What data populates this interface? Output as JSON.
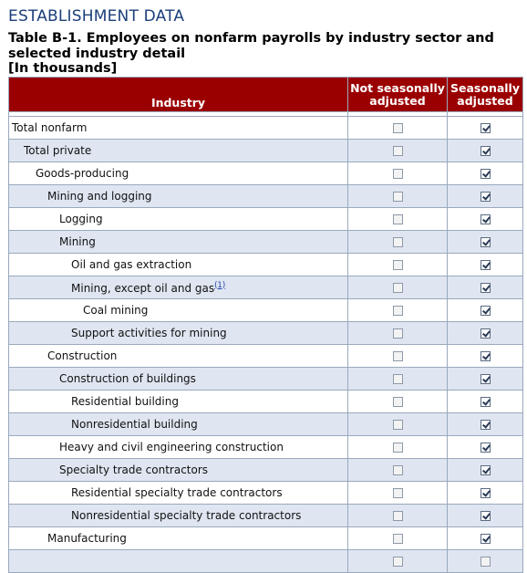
{
  "header": {
    "section_title": "ESTABLISHMENT DATA",
    "table_title": "Table B-1. Employees on nonfarm payrolls by industry sector and selected industry detail",
    "units": "[In thousands]"
  },
  "table": {
    "columns": [
      "Industry",
      "Not seasonally adjusted",
      "Seasonally adjusted"
    ],
    "rows": [
      {
        "label": "Total nonfarm",
        "level": 0,
        "nsa_checked": false,
        "sa_checked": true
      },
      {
        "label": "Total private",
        "level": 1,
        "nsa_checked": false,
        "sa_checked": true
      },
      {
        "label": "Goods-producing",
        "level": 2,
        "nsa_checked": false,
        "sa_checked": true
      },
      {
        "label": "Mining and logging",
        "level": 3,
        "nsa_checked": false,
        "sa_checked": true
      },
      {
        "label": "Logging",
        "level": 4,
        "nsa_checked": false,
        "sa_checked": true
      },
      {
        "label": "Mining",
        "level": 4,
        "nsa_checked": false,
        "sa_checked": true
      },
      {
        "label": "Oil and gas extraction",
        "level": 5,
        "nsa_checked": false,
        "sa_checked": true
      },
      {
        "label": "Mining, except oil and gas",
        "footnote": "(1)",
        "level": 5,
        "nsa_checked": false,
        "sa_checked": true
      },
      {
        "label": "Coal mining",
        "level": 6,
        "nsa_checked": false,
        "sa_checked": true
      },
      {
        "label": "Support activities for mining",
        "level": 5,
        "nsa_checked": false,
        "sa_checked": true
      },
      {
        "label": "Construction",
        "level": 3,
        "nsa_checked": false,
        "sa_checked": true
      },
      {
        "label": "Construction of buildings",
        "level": 4,
        "nsa_checked": false,
        "sa_checked": true
      },
      {
        "label": "Residential building",
        "level": 5,
        "nsa_checked": false,
        "sa_checked": true
      },
      {
        "label": "Nonresidential building",
        "level": 5,
        "nsa_checked": false,
        "sa_checked": true
      },
      {
        "label": "Heavy and civil engineering construction",
        "level": 4,
        "nsa_checked": false,
        "sa_checked": true
      },
      {
        "label": "Specialty trade contractors",
        "level": 4,
        "nsa_checked": false,
        "sa_checked": true
      },
      {
        "label": "Residential specialty trade contractors",
        "level": 5,
        "nsa_checked": false,
        "sa_checked": true
      },
      {
        "label": "Nonresidential specialty trade contractors",
        "level": 5,
        "nsa_checked": false,
        "sa_checked": true
      },
      {
        "label": "Manufacturing",
        "level": 3,
        "nsa_checked": false,
        "sa_checked": true
      },
      {
        "label": "",
        "level": 3,
        "nsa_checked": false,
        "sa_checked": false
      }
    ]
  }
}
